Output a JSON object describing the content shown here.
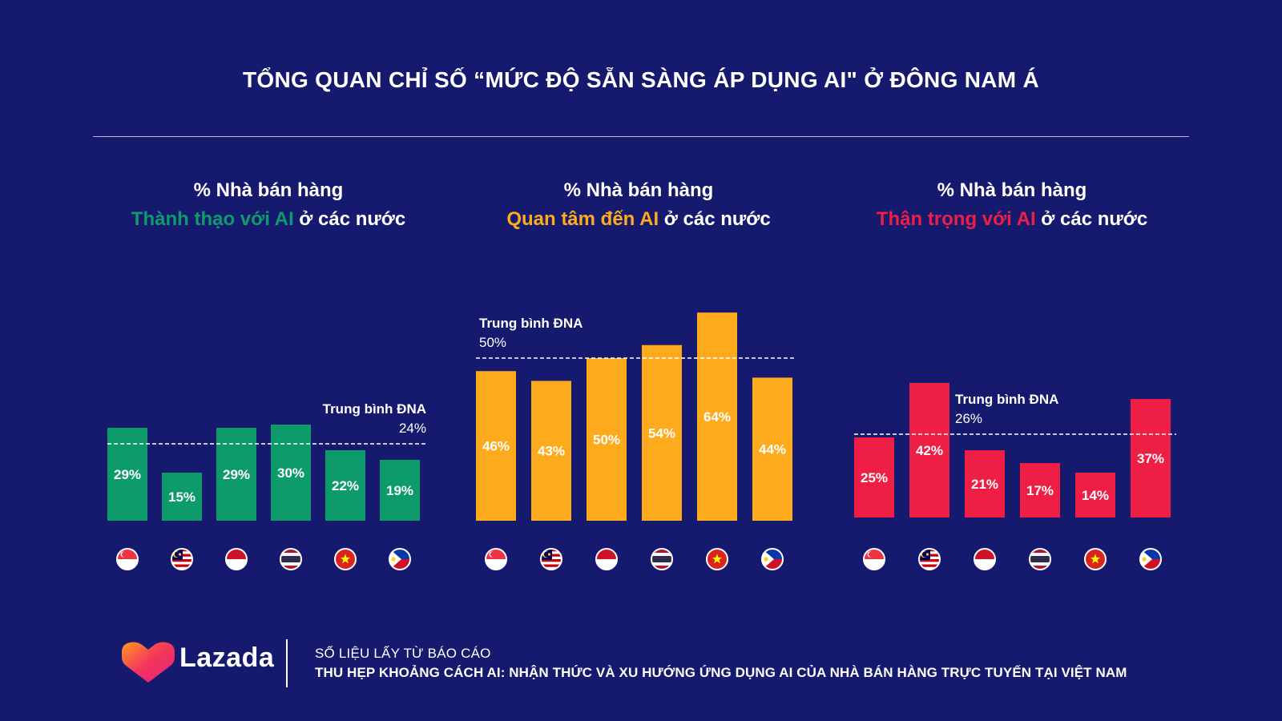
{
  "title": "TỔNG QUAN CHỈ SỐ “MỨC ĐỘ SẴN SÀNG ÁP DỤNG AI\" Ở ĐÔNG NAM Á",
  "colors": {
    "background": "#161a6e",
    "green": "#0e9b6c",
    "orange": "#fdab1c",
    "red": "#ee1e44",
    "text": "#ffffff"
  },
  "countries": [
    "Singapore",
    "Malaysia",
    "Indonesia",
    "Thailand",
    "Vietnam",
    "Philippines"
  ],
  "flag_icons": [
    "singapore-flag-icon",
    "malaysia-flag-icon",
    "indonesia-flag-icon",
    "thailand-flag-icon",
    "vietnam-flag-icon",
    "philippines-flag-icon"
  ],
  "chart_data": [
    {
      "type": "bar",
      "heading_line1": "% Nhà bán hàng",
      "heading_highlight": "Thành thạo với AI",
      "heading_rest": " ở các nước",
      "color": "#0e9b6c",
      "values": [
        29,
        15,
        29,
        30,
        22,
        19
      ],
      "labels": [
        "29%",
        "15%",
        "29%",
        "30%",
        "22%",
        "19%"
      ],
      "average_title": "Trung bình ĐNA",
      "average_value": 24,
      "average_label": "24%",
      "average_label_side": "right"
    },
    {
      "type": "bar",
      "heading_line1": "% Nhà bán hàng",
      "heading_highlight": "Quan tâm đến AI",
      "heading_rest": " ở các nước",
      "color": "#fdab1c",
      "values": [
        46,
        43,
        50,
        54,
        64,
        44
      ],
      "labels": [
        "46%",
        "43%",
        "50%",
        "54%",
        "64%",
        "44%"
      ],
      "average_title": "Trung bình ĐNA",
      "average_value": 50,
      "average_label": "50%",
      "average_label_side": "left"
    },
    {
      "type": "bar",
      "heading_line1": "% Nhà bán hàng",
      "heading_highlight": "Thận trọng với AI",
      "heading_rest": " ở các nước",
      "color": "#ee1e44",
      "values": [
        25,
        42,
        21,
        17,
        14,
        37
      ],
      "labels": [
        "25%",
        "42%",
        "21%",
        "17%",
        "14%",
        "37%"
      ],
      "average_title": "Trung bình ĐNA",
      "average_value": 26,
      "average_label": "26%",
      "average_label_side": "center"
    }
  ],
  "footer": {
    "brand": "Lazada",
    "source_line1": "SỐ LIỆU LẤY TỪ BÁO CÁO",
    "source_line2": "THU HẸP KHOẢNG CÁCH AI: NHẬN THỨC VÀ XU HƯỚNG ỨNG DỤNG AI CỦA NHÀ BÁN HÀNG TRỰC TUYẾN TẠI VIỆT NAM",
    "logo_icon": "lazada-heart-logo-icon"
  }
}
